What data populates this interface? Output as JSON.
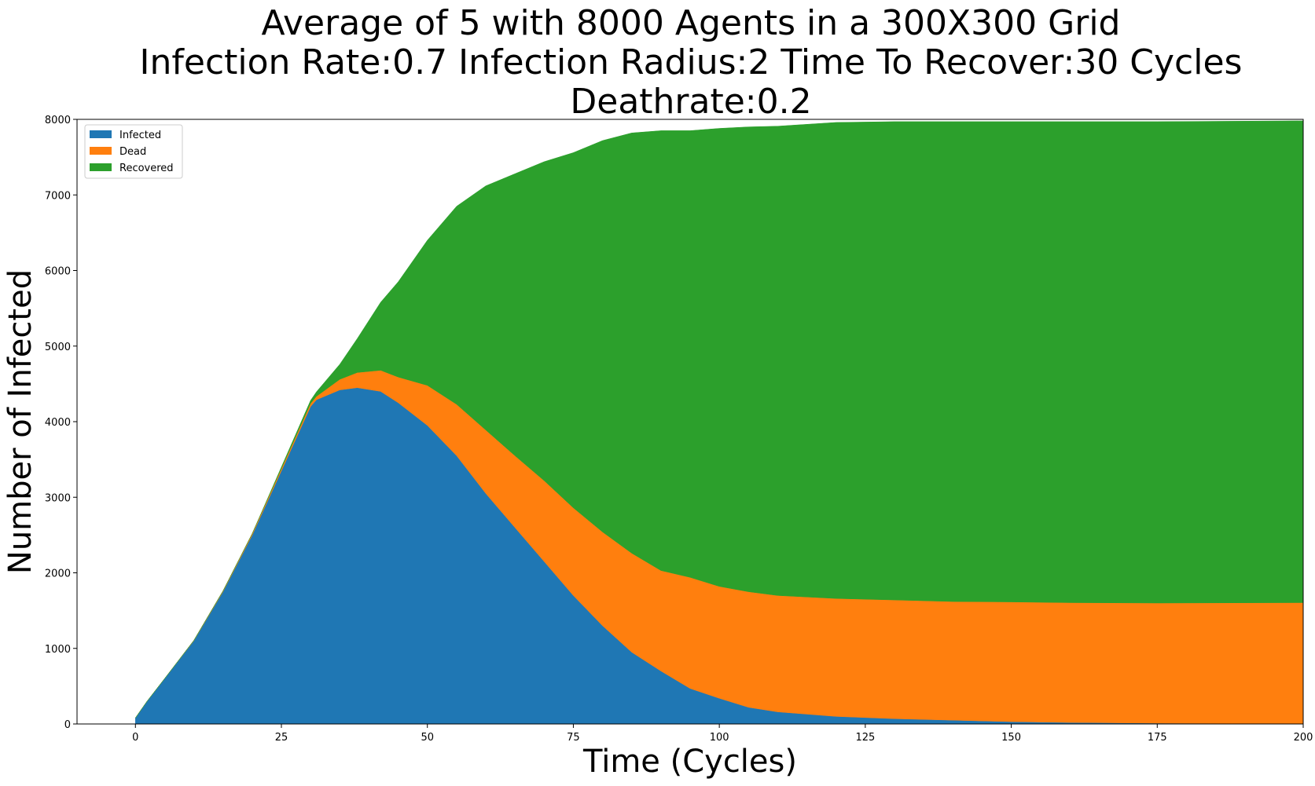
{
  "chart_data": {
    "type": "area",
    "stacked": true,
    "title_lines": [
      "Average of 5 with 8000 Agents in a 300X300 Grid",
      "Infection Rate:0.7  Infection Radius:2  Time To Recover:30 Cycles",
      "Deathrate:0.2"
    ],
    "xlabel": "Time (Cycles)",
    "ylabel": "Number of Infected",
    "xlim": [
      -10,
      200
    ],
    "ylim": [
      0,
      8000
    ],
    "xticks": [
      0,
      25,
      50,
      75,
      100,
      125,
      150,
      175,
      200
    ],
    "yticks": [
      0,
      1000,
      2000,
      3000,
      4000,
      5000,
      6000,
      7000,
      8000
    ],
    "grid": false,
    "legend_position": "upper-left",
    "x": [
      0,
      2,
      5,
      10,
      15,
      20,
      25,
      30,
      31,
      35,
      38,
      42,
      45,
      50,
      55,
      60,
      65,
      70,
      75,
      80,
      85,
      90,
      95,
      100,
      105,
      110,
      120,
      130,
      140,
      150,
      160,
      175,
      200
    ],
    "series": [
      {
        "name": "Infected",
        "color": "#1f77b4",
        "values": [
          80,
          300,
          600,
          1100,
          1750,
          2500,
          3350,
          4200,
          4290,
          4420,
          4450,
          4400,
          4250,
          3950,
          3550,
          3050,
          2600,
          2150,
          1700,
          1300,
          950,
          700,
          470,
          340,
          220,
          160,
          100,
          70,
          50,
          30,
          20,
          10,
          5
        ]
      },
      {
        "name": "Dead",
        "color": "#ff7f0e",
        "values": [
          0,
          0,
          0,
          5,
          10,
          20,
          30,
          40,
          45,
          140,
          200,
          280,
          340,
          530,
          680,
          840,
          950,
          1070,
          1160,
          1240,
          1310,
          1330,
          1470,
          1480,
          1530,
          1540,
          1560,
          1570,
          1570,
          1585,
          1585,
          1590,
          1600
        ]
      },
      {
        "name": "Recovered",
        "color": "#2ca02c",
        "values": [
          0,
          0,
          0,
          0,
          0,
          0,
          20,
          40,
          60,
          200,
          450,
          900,
          1260,
          1920,
          2620,
          3230,
          3730,
          4220,
          4700,
          5180,
          5560,
          5820,
          5910,
          6060,
          6150,
          6210,
          6300,
          6330,
          6350,
          6355,
          6365,
          6370,
          6375
        ]
      }
    ]
  }
}
